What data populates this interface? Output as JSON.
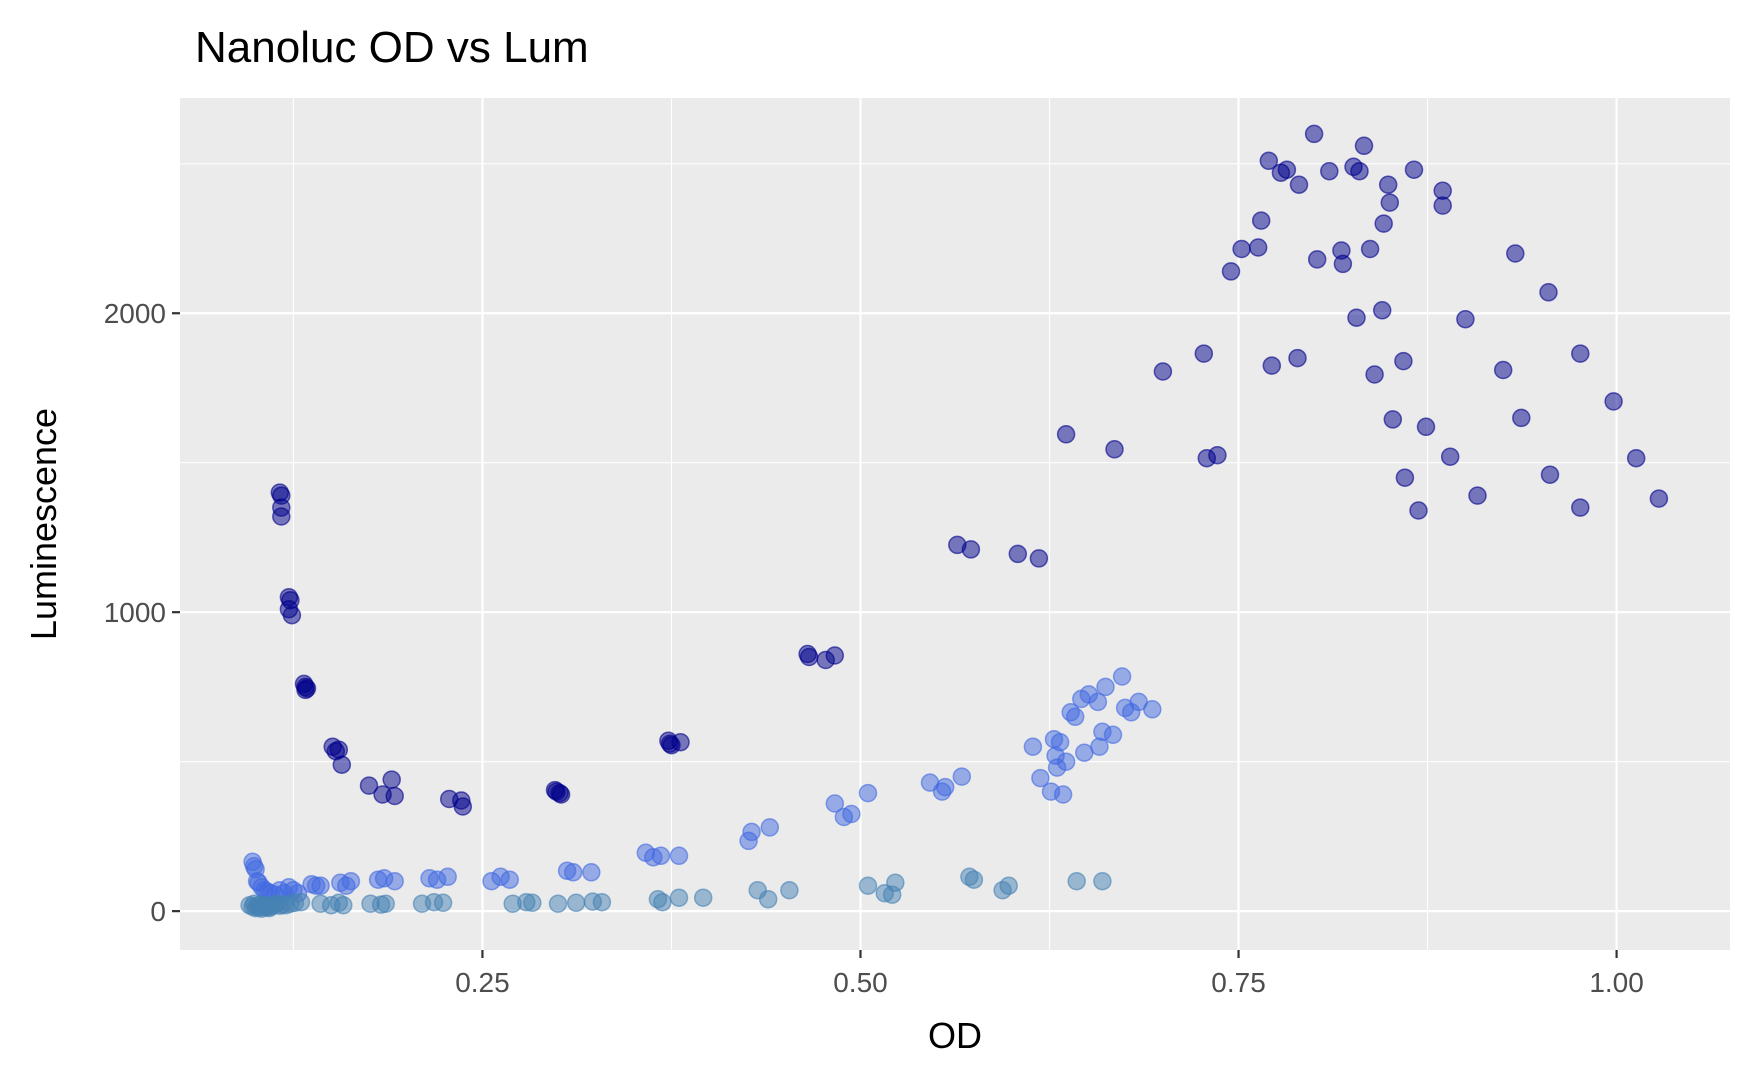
{
  "chart_data": {
    "type": "scatter",
    "title": "Nanoluc OD vs Lum",
    "xlabel": "OD",
    "ylabel": "Luminescence",
    "xlim": [
      0.05,
      1.075
    ],
    "ylim": [
      -130,
      2720
    ],
    "x_ticks": [
      0.25,
      0.5,
      0.75,
      1.0
    ],
    "x_tick_labels": [
      "0.25",
      "0.50",
      "0.75",
      "1.00"
    ],
    "y_ticks": [
      0,
      1000,
      2000
    ],
    "y_tick_labels": [
      "0",
      "1000",
      "2000"
    ],
    "grid": true,
    "legend": "none",
    "panel_background": "#EBEBEB",
    "series": [
      {
        "color": "#00008B",
        "points": [
          [
            0.116,
            1400
          ],
          [
            0.117,
            1390
          ],
          [
            0.117,
            1350
          ],
          [
            0.117,
            1320
          ],
          [
            0.122,
            1050
          ],
          [
            0.123,
            1040
          ],
          [
            0.122,
            1010
          ],
          [
            0.124,
            990
          ],
          [
            0.132,
            760
          ],
          [
            0.133,
            750
          ],
          [
            0.134,
            745
          ],
          [
            0.133,
            740
          ],
          [
            0.151,
            550
          ],
          [
            0.153,
            535
          ],
          [
            0.155,
            540
          ],
          [
            0.157,
            490
          ],
          [
            0.175,
            420
          ],
          [
            0.184,
            390
          ],
          [
            0.19,
            440
          ],
          [
            0.192,
            385
          ],
          [
            0.228,
            375
          ],
          [
            0.236,
            370
          ],
          [
            0.237,
            350
          ],
          [
            0.298,
            405
          ],
          [
            0.299,
            400
          ],
          [
            0.301,
            395
          ],
          [
            0.302,
            390
          ],
          [
            0.373,
            570
          ],
          [
            0.374,
            560
          ],
          [
            0.375,
            555
          ],
          [
            0.381,
            565
          ],
          [
            0.465,
            860
          ],
          [
            0.466,
            850
          ],
          [
            0.477,
            840
          ],
          [
            0.483,
            855
          ],
          [
            0.564,
            1225
          ],
          [
            0.573,
            1210
          ],
          [
            0.604,
            1195
          ],
          [
            0.618,
            1180
          ],
          [
            0.636,
            1595
          ],
          [
            0.668,
            1545
          ],
          [
            0.7,
            1805
          ],
          [
            0.727,
            1865
          ],
          [
            0.729,
            1515
          ],
          [
            0.736,
            1525
          ],
          [
            0.745,
            2140
          ],
          [
            0.752,
            2215
          ],
          [
            0.763,
            2220
          ],
          [
            0.765,
            2310
          ],
          [
            0.77,
            2510
          ],
          [
            0.772,
            1825
          ],
          [
            0.778,
            2470
          ],
          [
            0.782,
            2480
          ],
          [
            0.789,
            1850
          ],
          [
            0.79,
            2430
          ],
          [
            0.8,
            2600
          ],
          [
            0.802,
            2180
          ],
          [
            0.81,
            2475
          ],
          [
            0.818,
            2210
          ],
          [
            0.819,
            2165
          ],
          [
            0.826,
            2490
          ],
          [
            0.828,
            1985
          ],
          [
            0.83,
            2475
          ],
          [
            0.833,
            2560
          ],
          [
            0.837,
            2215
          ],
          [
            0.84,
            1795
          ],
          [
            0.845,
            2010
          ],
          [
            0.846,
            2300
          ],
          [
            0.849,
            2430
          ],
          [
            0.85,
            2370
          ],
          [
            0.852,
            1645
          ],
          [
            0.859,
            1840
          ],
          [
            0.86,
            1450
          ],
          [
            0.866,
            2480
          ],
          [
            0.869,
            1340
          ],
          [
            0.874,
            1620
          ],
          [
            0.885,
            2410
          ],
          [
            0.885,
            2360
          ],
          [
            0.89,
            1520
          ],
          [
            0.9,
            1980
          ],
          [
            0.908,
            1390
          ],
          [
            0.925,
            1810
          ],
          [
            0.933,
            2200
          ],
          [
            0.937,
            1650
          ],
          [
            0.955,
            2070
          ],
          [
            0.956,
            1460
          ],
          [
            0.976,
            1865
          ],
          [
            0.976,
            1350
          ],
          [
            0.998,
            1705
          ],
          [
            1.013,
            1515
          ],
          [
            1.028,
            1380
          ]
        ]
      },
      {
        "color": "#4169E1",
        "points": [
          [
            0.098,
            165
          ],
          [
            0.099,
            150
          ],
          [
            0.1,
            140
          ],
          [
            0.101,
            100
          ],
          [
            0.102,
            95
          ],
          [
            0.104,
            80
          ],
          [
            0.106,
            70
          ],
          [
            0.108,
            65
          ],
          [
            0.11,
            60
          ],
          [
            0.113,
            55
          ],
          [
            0.116,
            70
          ],
          [
            0.119,
            60
          ],
          [
            0.122,
            80
          ],
          [
            0.125,
            70
          ],
          [
            0.128,
            60
          ],
          [
            0.137,
            90
          ],
          [
            0.14,
            85
          ],
          [
            0.143,
            85
          ],
          [
            0.156,
            95
          ],
          [
            0.16,
            85
          ],
          [
            0.163,
            100
          ],
          [
            0.181,
            105
          ],
          [
            0.185,
            110
          ],
          [
            0.192,
            100
          ],
          [
            0.215,
            110
          ],
          [
            0.22,
            105
          ],
          [
            0.227,
            115
          ],
          [
            0.256,
            100
          ],
          [
            0.262,
            115
          ],
          [
            0.268,
            105
          ],
          [
            0.306,
            135
          ],
          [
            0.31,
            130
          ],
          [
            0.322,
            130
          ],
          [
            0.358,
            195
          ],
          [
            0.363,
            180
          ],
          [
            0.368,
            185
          ],
          [
            0.38,
            185
          ],
          [
            0.426,
            235
          ],
          [
            0.428,
            265
          ],
          [
            0.44,
            280
          ],
          [
            0.483,
            360
          ],
          [
            0.489,
            315
          ],
          [
            0.494,
            325
          ],
          [
            0.505,
            395
          ],
          [
            0.546,
            430
          ],
          [
            0.554,
            400
          ],
          [
            0.556,
            415
          ],
          [
            0.567,
            450
          ],
          [
            0.614,
            550
          ],
          [
            0.619,
            445
          ],
          [
            0.626,
            400
          ],
          [
            0.628,
            575
          ],
          [
            0.629,
            520
          ],
          [
            0.63,
            480
          ],
          [
            0.632,
            565
          ],
          [
            0.634,
            390
          ],
          [
            0.636,
            500
          ],
          [
            0.639,
            665
          ],
          [
            0.642,
            650
          ],
          [
            0.646,
            710
          ],
          [
            0.648,
            530
          ],
          [
            0.651,
            725
          ],
          [
            0.657,
            700
          ],
          [
            0.658,
            550
          ],
          [
            0.66,
            600
          ],
          [
            0.662,
            750
          ],
          [
            0.667,
            590
          ],
          [
            0.673,
            785
          ],
          [
            0.675,
            680
          ],
          [
            0.679,
            665
          ],
          [
            0.684,
            700
          ],
          [
            0.693,
            675
          ]
        ]
      },
      {
        "color": "#4682B4",
        "points": [
          [
            0.096,
            20
          ],
          [
            0.098,
            15
          ],
          [
            0.099,
            25
          ],
          [
            0.1,
            10
          ],
          [
            0.101,
            18
          ],
          [
            0.102,
            12
          ],
          [
            0.103,
            22
          ],
          [
            0.104,
            8
          ],
          [
            0.105,
            15
          ],
          [
            0.106,
            20
          ],
          [
            0.107,
            12
          ],
          [
            0.108,
            18
          ],
          [
            0.109,
            10
          ],
          [
            0.11,
            15
          ],
          [
            0.112,
            20
          ],
          [
            0.114,
            25
          ],
          [
            0.116,
            18
          ],
          [
            0.118,
            22
          ],
          [
            0.12,
            20
          ],
          [
            0.123,
            25
          ],
          [
            0.126,
            28
          ],
          [
            0.13,
            30
          ],
          [
            0.143,
            25
          ],
          [
            0.15,
            20
          ],
          [
            0.155,
            28
          ],
          [
            0.158,
            20
          ],
          [
            0.176,
            25
          ],
          [
            0.183,
            22
          ],
          [
            0.186,
            25
          ],
          [
            0.21,
            25
          ],
          [
            0.218,
            30
          ],
          [
            0.224,
            28
          ],
          [
            0.27,
            25
          ],
          [
            0.279,
            30
          ],
          [
            0.283,
            28
          ],
          [
            0.3,
            25
          ],
          [
            0.312,
            28
          ],
          [
            0.323,
            32
          ],
          [
            0.329,
            30
          ],
          [
            0.366,
            40
          ],
          [
            0.369,
            30
          ],
          [
            0.38,
            45
          ],
          [
            0.396,
            45
          ],
          [
            0.432,
            70
          ],
          [
            0.439,
            40
          ],
          [
            0.453,
            70
          ],
          [
            0.505,
            85
          ],
          [
            0.516,
            60
          ],
          [
            0.521,
            55
          ],
          [
            0.523,
            95
          ],
          [
            0.572,
            115
          ],
          [
            0.575,
            105
          ],
          [
            0.594,
            70
          ],
          [
            0.598,
            85
          ],
          [
            0.643,
            100
          ],
          [
            0.66,
            100
          ]
        ]
      }
    ]
  }
}
